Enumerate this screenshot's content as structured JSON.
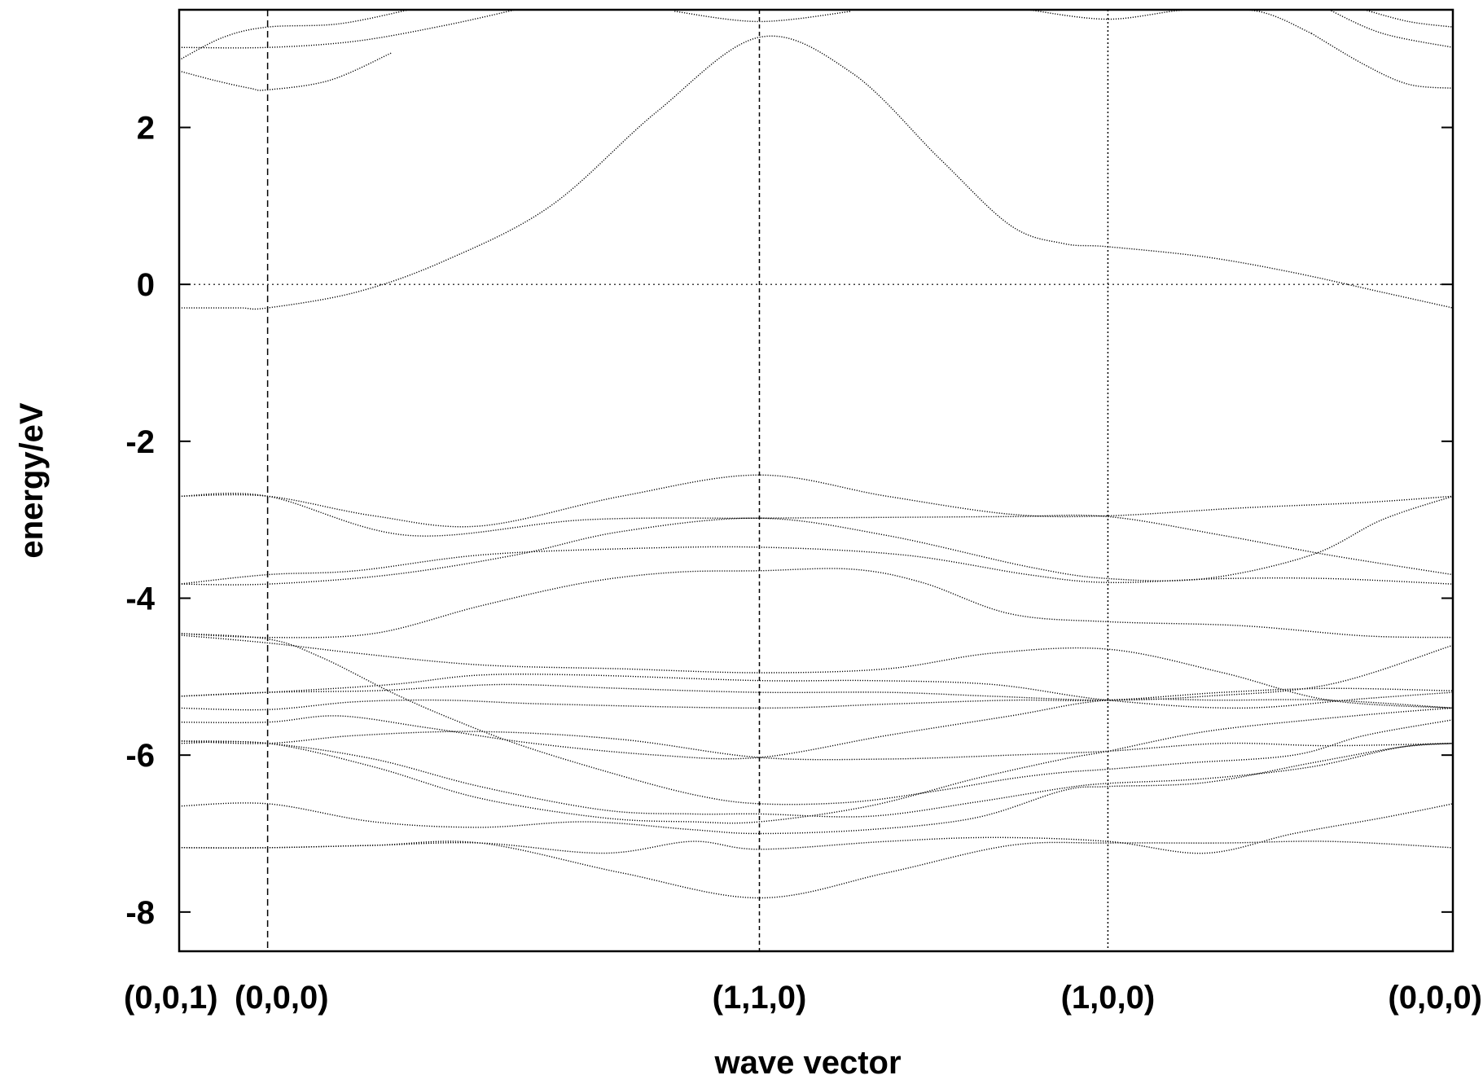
{
  "chart_data": {
    "type": "line",
    "xlabel": "wave vector",
    "ylabel": "energy/eV",
    "ylim": [
      -8.5,
      3.5
    ],
    "xlim": [
      -0.5,
      6.7
    ],
    "y_ticks": [
      2,
      0,
      -2,
      -4,
      -6,
      -8
    ],
    "y_tick_labels": [
      "2",
      "0",
      "-2",
      "-4",
      "-6",
      "-8"
    ],
    "kpoints": [
      {
        "label": "(0,0,1)",
        "x": -0.5,
        "line": "none"
      },
      {
        "label": "(0,0,0)",
        "x": 0,
        "line": "long-dash"
      },
      {
        "label": "(1,1,0)",
        "x": 2.78,
        "line": "short-dash"
      },
      {
        "label": "(1,0,0)",
        "x": 4.75,
        "line": "dotted"
      },
      {
        "label": "(0,0,0)",
        "x": 6.7,
        "line": "none"
      }
    ],
    "zero_line": true,
    "grid": false,
    "series_style": "dotted",
    "bands": [
      {
        "x": [
          -0.5,
          -0.35,
          -0.15,
          0,
          0.5,
          1.0,
          1.6,
          2.2,
          2.78,
          3.3,
          3.8,
          4.2,
          4.5,
          4.75,
          5.3,
          5.8,
          6.3,
          6.7
        ],
        "y": [
          -0.3,
          -0.3,
          -0.3,
          -0.3,
          -0.1,
          0.3,
          1.0,
          2.2,
          3.15,
          2.7,
          1.6,
          0.75,
          0.52,
          0.48,
          0.35,
          0.15,
          -0.1,
          -0.3
        ]
      },
      {
        "x": [
          -0.5,
          -0.3,
          -0.1,
          0,
          0.35,
          0.7
        ],
        "y": [
          2.72,
          2.6,
          2.5,
          2.48,
          2.6,
          2.95
        ]
      },
      {
        "x": [
          -0.5,
          0,
          0.5,
          1.0,
          1.4
        ],
        "y": [
          3.02,
          3.02,
          3.1,
          3.3,
          3.5
        ]
      },
      {
        "x": [
          -0.5,
          -0.25,
          0,
          0.4,
          0.8
        ],
        "y": [
          2.86,
          3.15,
          3.28,
          3.32,
          3.5
        ]
      },
      {
        "x": [
          2.3,
          2.78,
          3.3
        ],
        "y": [
          3.48,
          3.35,
          3.48
        ]
      },
      {
        "x": [
          4.3,
          4.75,
          5.2,
          5.6,
          5.9
        ],
        "y": [
          3.5,
          3.38,
          3.5,
          3.48,
          3.2
        ]
      },
      {
        "x": [
          5.9,
          6.2,
          6.45,
          6.7
        ],
        "y": [
          3.2,
          2.8,
          2.55,
          2.5
        ]
      },
      {
        "x": [
          6.0,
          6.3,
          6.7
        ],
        "y": [
          3.5,
          3.2,
          3.02
        ]
      },
      {
        "x": [
          6.2,
          6.45,
          6.7
        ],
        "y": [
          3.5,
          3.35,
          3.28
        ]
      },
      {
        "x": [
          -0.5,
          0,
          0.6,
          1.2,
          2.0,
          2.78,
          3.5,
          4.2,
          4.75,
          5.5,
          6.2,
          6.7
        ],
        "y": [
          -2.7,
          -2.7,
          -2.95,
          -3.08,
          -2.7,
          -2.43,
          -2.7,
          -2.93,
          -2.95,
          -2.85,
          -2.78,
          -2.7
        ]
      },
      {
        "x": [
          -0.5,
          0,
          0.8,
          1.8,
          2.78,
          3.5,
          4.2,
          4.75,
          5.4,
          6.0,
          6.7
        ],
        "y": [
          -2.7,
          -2.7,
          -3.2,
          -3.0,
          -2.98,
          -2.97,
          -2.96,
          -2.96,
          -3.2,
          -3.45,
          -3.7
        ]
      },
      {
        "x": [
          -0.5,
          0,
          0.7,
          1.4,
          2.0,
          2.78,
          3.5,
          4.3,
          4.75,
          5.3,
          5.9,
          6.3,
          6.7
        ],
        "y": [
          -3.82,
          -3.82,
          -3.7,
          -3.45,
          -3.15,
          -2.98,
          -3.2,
          -3.6,
          -3.75,
          -3.75,
          -3.45,
          -3.0,
          -2.7
        ]
      },
      {
        "x": [
          -0.5,
          0,
          0.5,
          1.2,
          2.0,
          2.78,
          3.6,
          4.3,
          4.75,
          5.4,
          6.0,
          6.7
        ],
        "y": [
          -3.82,
          -3.7,
          -3.65,
          -3.45,
          -3.37,
          -3.35,
          -3.45,
          -3.7,
          -3.8,
          -3.75,
          -3.75,
          -3.82
        ]
      },
      {
        "x": [
          -0.5,
          0,
          0.6,
          1.2,
          1.8,
          2.3,
          2.78,
          3.3,
          3.7,
          4.2,
          4.75,
          5.5,
          6.2,
          6.7
        ],
        "y": [
          -4.45,
          -4.5,
          -4.45,
          -4.1,
          -3.8,
          -3.67,
          -3.65,
          -3.63,
          -3.8,
          -4.2,
          -4.3,
          -4.35,
          -4.48,
          -4.5
        ]
      },
      {
        "x": [
          -0.5,
          0,
          0.3,
          0.7,
          1.0,
          1.4,
          1.9,
          2.4,
          2.78,
          3.3,
          3.8,
          4.2,
          4.5,
          4.75,
          5.2,
          5.8,
          6.2,
          6.7
        ],
        "y": [
          -4.45,
          -4.52,
          -4.75,
          -5.2,
          -5.5,
          -5.85,
          -6.2,
          -6.5,
          -6.62,
          -6.6,
          -6.45,
          -6.3,
          -6.22,
          -6.18,
          -6.1,
          -6.0,
          -5.75,
          -5.55
        ]
      },
      {
        "x": [
          -0.5,
          0,
          0.5,
          1.2,
          2.0,
          2.78,
          3.5,
          4.1,
          4.75,
          5.4,
          6.0,
          6.7
        ],
        "y": [
          -4.47,
          -4.57,
          -4.7,
          -4.85,
          -4.9,
          -4.95,
          -4.9,
          -4.7,
          -4.65,
          -4.95,
          -5.3,
          -5.4
        ]
      },
      {
        "x": [
          -0.5,
          0,
          0.7,
          1.2,
          1.8,
          2.78,
          3.4,
          4.1,
          4.75,
          5.5,
          6.2,
          6.7
        ],
        "y": [
          -5.25,
          -5.2,
          -5.1,
          -4.98,
          -4.98,
          -5.05,
          -5.05,
          -5.1,
          -5.3,
          -5.4,
          -5.28,
          -5.2
        ]
      },
      {
        "x": [
          -0.5,
          0,
          0.6,
          1.0,
          1.4,
          2.0,
          2.78,
          3.5,
          4.1,
          4.75,
          5.3,
          6.0,
          6.7
        ],
        "y": [
          -5.25,
          -5.2,
          -5.18,
          -5.13,
          -5.1,
          -5.15,
          -5.2,
          -5.2,
          -5.25,
          -5.3,
          -5.25,
          -5.1,
          -4.6
        ]
      },
      {
        "x": [
          -0.5,
          0,
          0.5,
          1.0,
          1.6,
          2.78,
          3.5,
          4.2,
          4.75,
          5.4,
          6.0,
          6.7
        ],
        "y": [
          -5.4,
          -5.42,
          -5.32,
          -5.3,
          -5.35,
          -5.4,
          -5.35,
          -5.3,
          -5.3,
          -5.2,
          -5.15,
          -5.18
        ]
      },
      {
        "x": [
          -0.5,
          0,
          0.4,
          0.9,
          1.5,
          2.2,
          2.78,
          3.5,
          4.2,
          4.75,
          5.4,
          6.0,
          6.7
        ],
        "y": [
          -5.58,
          -5.58,
          -5.5,
          -5.65,
          -5.85,
          -6.0,
          -6.03,
          -5.75,
          -5.5,
          -5.3,
          -5.3,
          -5.3,
          -5.4
        ]
      },
      {
        "x": [
          -0.5,
          0,
          0.5,
          1.2,
          2.0,
          2.78,
          3.5,
          4.2,
          4.75,
          5.4,
          6.0,
          6.7
        ],
        "y": [
          -5.82,
          -5.85,
          -5.75,
          -5.7,
          -5.8,
          -6.03,
          -6.05,
          -6.0,
          -5.95,
          -5.85,
          -5.88,
          -5.85
        ]
      },
      {
        "x": [
          -0.5,
          0,
          0.6,
          1.2,
          1.9,
          2.4,
          2.78,
          3.4,
          4.0,
          4.5,
          4.75,
          5.3,
          5.9,
          6.4,
          6.7
        ],
        "y": [
          -5.82,
          -5.85,
          -6.05,
          -6.4,
          -6.7,
          -6.75,
          -6.75,
          -6.78,
          -6.6,
          -6.42,
          -6.36,
          -6.3,
          -6.15,
          -5.9,
          -5.85
        ]
      },
      {
        "x": [
          -0.5,
          0,
          0.6,
          1.2,
          1.9,
          2.4,
          2.78,
          3.4,
          4.0,
          4.5,
          4.75,
          5.3,
          5.9,
          6.4,
          6.7
        ],
        "y": [
          -5.85,
          -5.85,
          -6.15,
          -6.55,
          -6.8,
          -6.85,
          -6.85,
          -6.65,
          -6.3,
          -6.05,
          -5.95,
          -5.7,
          -5.55,
          -5.45,
          -5.4
        ]
      },
      {
        "x": [
          -0.5,
          0,
          0.6,
          1.2,
          1.8,
          2.4,
          2.78,
          3.4,
          4.0,
          4.5,
          4.75,
          5.3,
          5.9,
          6.4,
          6.7
        ],
        "y": [
          -6.65,
          -6.62,
          -6.85,
          -6.92,
          -6.85,
          -6.95,
          -7.0,
          -6.95,
          -6.8,
          -6.45,
          -6.4,
          -6.35,
          -6.1,
          -5.9,
          -5.85
        ]
      },
      {
        "x": [
          -0.5,
          0,
          0.6,
          1.2,
          1.9,
          2.4,
          2.78,
          3.5,
          4.1,
          4.75,
          5.3,
          5.8,
          6.3,
          6.7
        ],
        "y": [
          -7.18,
          -7.18,
          -7.15,
          -7.12,
          -7.25,
          -7.1,
          -7.2,
          -7.1,
          -7.05,
          -7.1,
          -7.25,
          -7.0,
          -6.8,
          -6.62
        ]
      },
      {
        "x": [
          -0.5,
          0,
          0.6,
          1.2,
          2.0,
          2.78,
          3.5,
          4.2,
          4.75,
          5.4,
          6.0,
          6.7
        ],
        "y": [
          -7.18,
          -7.18,
          -7.15,
          -7.12,
          -7.5,
          -7.82,
          -7.5,
          -7.15,
          -7.12,
          -7.12,
          -7.1,
          -7.18
        ]
      }
    ]
  }
}
